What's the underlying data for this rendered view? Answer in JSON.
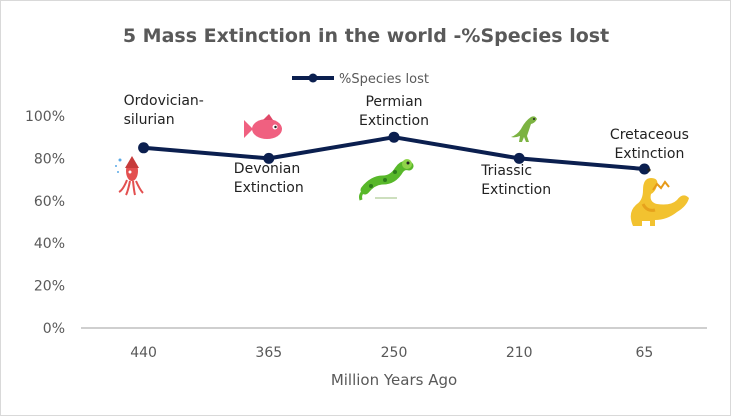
{
  "colors": {
    "series": "#0b1f4f",
    "axis": "#bfbfbf",
    "text": "#595959"
  },
  "chart_data": {
    "type": "line",
    "title": "5 Mass Extinction in the world -%Species lost",
    "xlabel": "Million Years Ago",
    "ylabel": "",
    "categories": [
      "440",
      "365",
      "250",
      "210",
      "65"
    ],
    "series": [
      {
        "name": "%Species lost",
        "values": [
          85,
          80,
          90,
          80,
          75
        ]
      }
    ],
    "ylim": [
      0,
      100
    ],
    "yticks": [
      "0%",
      "20%",
      "40%",
      "60%",
      "80%",
      "100%"
    ],
    "grid": false,
    "legend": "top",
    "annotations": [
      {
        "category": "440",
        "lines": [
          "Ordovician-",
          "silurian"
        ],
        "icon": "squid-icon"
      },
      {
        "category": "365",
        "lines": [
          "Devonian",
          "Extinction"
        ],
        "icon": "fish-icon"
      },
      {
        "category": "250",
        "lines": [
          "Permian",
          "Extinction"
        ],
        "icon": "lizard-icon"
      },
      {
        "category": "210",
        "lines": [
          "Triassic",
          "Extinction"
        ],
        "icon": "small-dinosaur-icon"
      },
      {
        "category": "65",
        "lines": [
          "Cretaceous",
          "Extinction"
        ],
        "icon": "dinosaur-icon"
      }
    ]
  }
}
